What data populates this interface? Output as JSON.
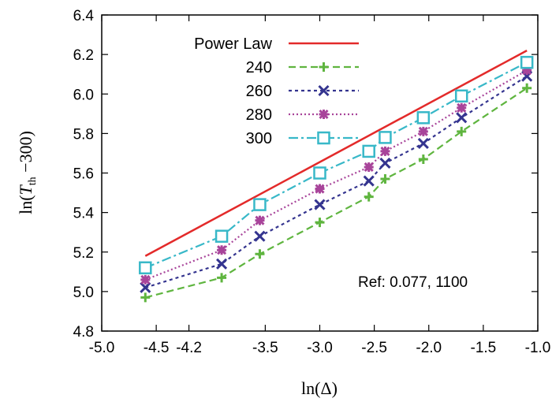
{
  "chart_data": {
    "type": "line",
    "xlabel": "ln(Δ)",
    "ylabel_parts": [
      "ln(",
      "T",
      "th",
      " −300)"
    ],
    "xlim": [
      -5.0,
      -1.0
    ],
    "ylim": [
      4.8,
      6.4
    ],
    "xticks": [
      -5.0,
      -4.5,
      -4.2,
      -3.5,
      -3.0,
      -2.5,
      -2.0,
      -1.5,
      -1.0
    ],
    "xtick_labels": [
      "-5.0",
      "-4.5",
      "-4.2",
      "-3.5",
      "-3.0",
      "-2.5",
      "-2.0",
      "-1.5",
      "-1.0"
    ],
    "yticks": [
      4.8,
      5.0,
      5.2,
      5.4,
      5.6,
      5.8,
      6.0,
      6.2,
      6.4
    ],
    "ytick_labels": [
      "4.8",
      "5.0",
      "5.2",
      "5.4",
      "5.6",
      "5.8",
      "6.0",
      "6.2",
      "6.4"
    ],
    "legend_position": "top-left",
    "annotation": "Ref: 0.077, 1100",
    "series": [
      {
        "name": "Power Law",
        "color": "#e32a2a",
        "dash": "solid",
        "marker": "none",
        "x": [
          -4.6,
          -1.1
        ],
        "y": [
          5.18,
          6.22
        ]
      },
      {
        "name": "240",
        "color": "#5fb53f",
        "dash": "dash",
        "marker": "plus",
        "x": [
          -4.6,
          -3.9,
          -3.55,
          -3.0,
          -2.55,
          -2.4,
          -2.05,
          -1.7,
          -1.1
        ],
        "y": [
          4.97,
          5.07,
          5.19,
          5.35,
          5.48,
          5.57,
          5.67,
          5.81,
          6.03
        ]
      },
      {
        "name": "260",
        "color": "#34348f",
        "dash": "dot",
        "marker": "x",
        "x": [
          -4.6,
          -3.9,
          -3.55,
          -3.0,
          -2.55,
          -2.4,
          -2.05,
          -1.7,
          -1.1
        ],
        "y": [
          5.02,
          5.14,
          5.28,
          5.44,
          5.56,
          5.65,
          5.75,
          5.88,
          6.09
        ]
      },
      {
        "name": "280",
        "color": "#a8449a",
        "dash": "fine-dot",
        "marker": "asterisk",
        "x": [
          -4.6,
          -3.9,
          -3.55,
          -3.0,
          -2.55,
          -2.4,
          -2.05,
          -1.7,
          -1.1
        ],
        "y": [
          5.06,
          5.21,
          5.36,
          5.52,
          5.63,
          5.71,
          5.81,
          5.93,
          6.12
        ]
      },
      {
        "name": "300",
        "color": "#38b8c8",
        "dash": "dash-dot",
        "marker": "square",
        "x": [
          -4.6,
          -3.9,
          -3.55,
          -3.0,
          -2.55,
          -2.4,
          -2.05,
          -1.7,
          -1.1
        ],
        "y": [
          5.12,
          5.28,
          5.44,
          5.6,
          5.71,
          5.78,
          5.88,
          5.99,
          6.16
        ]
      }
    ]
  }
}
